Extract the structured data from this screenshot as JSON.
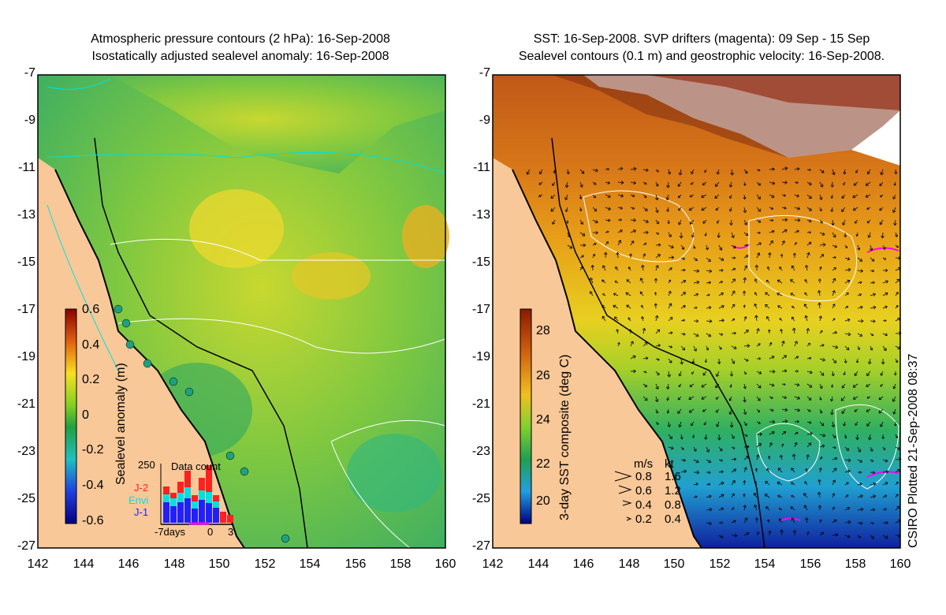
{
  "left_panel": {
    "title_line1": "Atmospheric pressure contours (2 hPa): 16-Sep-2008",
    "title_line2": "Isostatically adjusted sealevel anomaly: 16-Sep-2008",
    "colorbar_label": "Sealevel anomaly (m)",
    "colorbar_ticks": [
      "0.6",
      "0.4",
      "0.2",
      "0",
      "-0.2",
      "-0.4",
      "-0.6"
    ],
    "inset": {
      "title": "Data count",
      "y_max_label": "250",
      "legend": [
        "J-2",
        "Envi",
        "J-1"
      ],
      "legend_colors": [
        "#ff2020",
        "#00e0e0",
        "#2020ff"
      ],
      "x_labels": [
        "-7days",
        "0",
        "3"
      ]
    }
  },
  "right_panel": {
    "title_line1": "SST: 16-Sep-2008. SVP drifters (magenta): 09 Sep - 15 Sep",
    "title_line2": "Sealevel contours (0.1 m) and geostrophic velocity: 16-Sep-2008.",
    "colorbar_label": "3-day SST composite (deg C)",
    "colorbar_ticks": [
      "28",
      "26",
      "24",
      "22",
      "20"
    ],
    "velocity_legend": {
      "header_ms": "m/s",
      "header_kt": "kt",
      "rows": [
        {
          "ms": "0.8",
          "kt": "1.6"
        },
        {
          "ms": "0.6",
          "kt": "1.2"
        },
        {
          "ms": "0.4",
          "kt": "0.8"
        },
        {
          "ms": "0.2",
          "kt": "0.4"
        }
      ]
    },
    "credit": "CSIRO Plotted 21-Sep-2008 08:37"
  },
  "axes": {
    "lat_ticks": [
      "-7",
      "-9",
      "-11",
      "-13",
      "-15",
      "-17",
      "-19",
      "-21",
      "-23",
      "-25",
      "-27"
    ],
    "lon_ticks": [
      "142",
      "144",
      "146",
      "148",
      "150",
      "152",
      "154",
      "156",
      "158",
      "160"
    ]
  },
  "colors": {
    "land": "#f8c898",
    "coast": "#000000",
    "contour": "#ffffff",
    "pressure_contour": "#00e0e0",
    "drifter": "#ff00ff"
  }
}
